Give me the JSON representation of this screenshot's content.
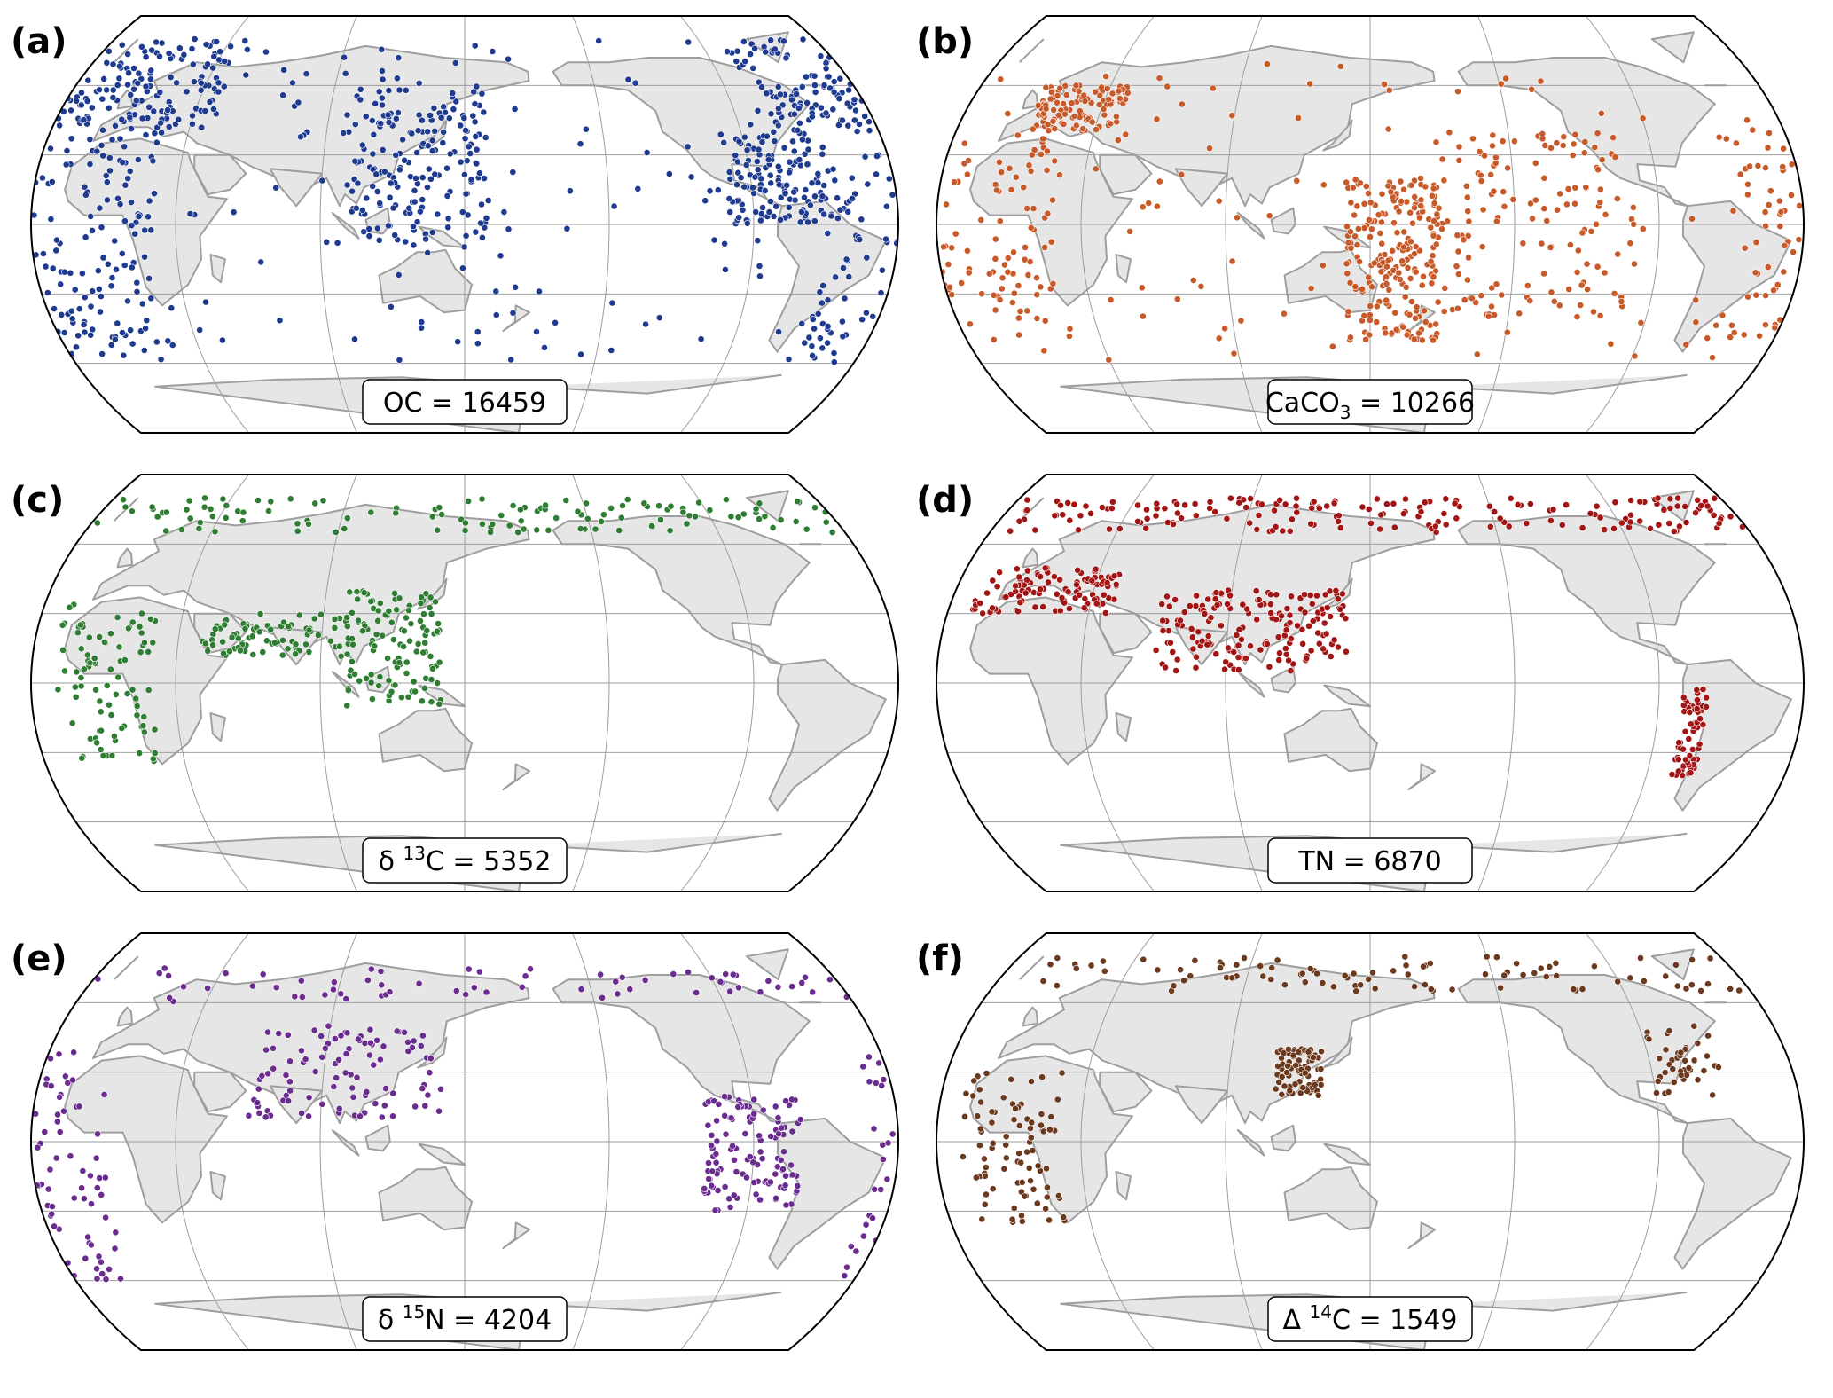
{
  "figure": {
    "panels": [
      {
        "label": "(a)",
        "variable": "OC",
        "count_text": "OC = 16459",
        "color": "#1f3b8f",
        "count": {
          "prefix": "OC",
          "sup": "",
          "sub": "",
          "rest": " = 16459"
        }
      },
      {
        "label": "(b)",
        "variable": "CaCO3",
        "count_text": "CaCO3 = 10266",
        "color": "#c85a2a",
        "count": {
          "prefix": "CaCO",
          "sup": "",
          "sub": "3",
          "rest": " = 10266"
        }
      },
      {
        "label": "(c)",
        "variable": "δ13C",
        "count_text": "δ 13C = 5352",
        "color": "#2e7d32",
        "count": {
          "prefix": "δ ",
          "sup": "13",
          "sub": "",
          "rest": "C = 5352"
        }
      },
      {
        "label": "(d)",
        "variable": "TN",
        "count_text": "TN = 6870",
        "color": "#a31515",
        "count": {
          "prefix": "TN",
          "sup": "",
          "sub": "",
          "rest": " = 6870"
        }
      },
      {
        "label": "(e)",
        "variable": "δ15N",
        "count_text": "δ 15N = 4204",
        "color": "#6a2c8e",
        "count": {
          "prefix": "δ ",
          "sup": "15",
          "sub": "",
          "rest": "N = 4204"
        }
      },
      {
        "label": "(f)",
        "variable": "Δ14C",
        "count_text": "Δ 14C = 1549",
        "color": "#6b3a1e",
        "count": {
          "prefix": "Δ ",
          "sup": "14",
          "sub": "",
          "rest": "C = 1549"
        }
      }
    ]
  },
  "map_style": {
    "projection": "robinson",
    "central_longitude": "pacific-centered",
    "land_color": "#e6e6e6",
    "coast_color": "#9e9e9e",
    "grid_color": "#9e9e9e",
    "ocean_color": "#ffffff",
    "point_edge_color": "#ffffff",
    "grid": true
  }
}
